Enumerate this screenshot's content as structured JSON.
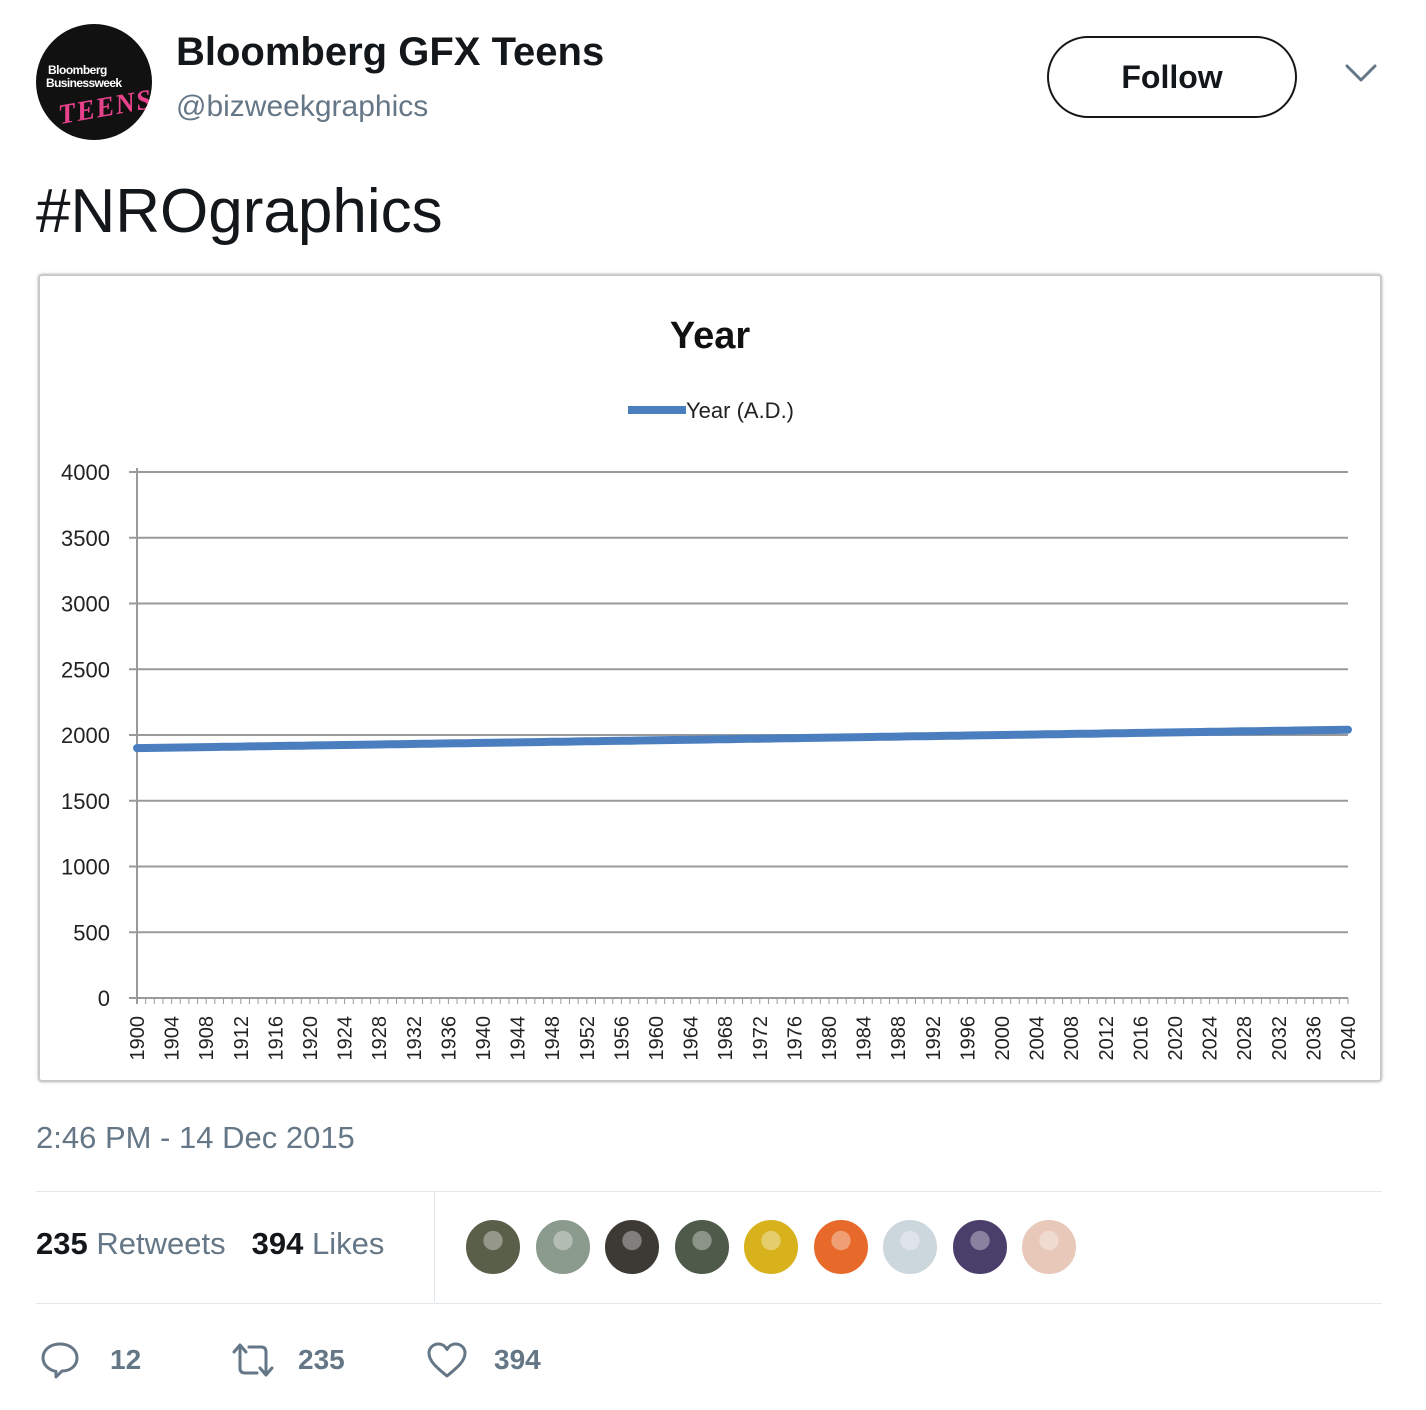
{
  "tweet": {
    "avatar_icon": "bloomberg-businessweek-teens-logo",
    "avatar_text": {
      "line1": "Bloomberg",
      "line2": "Businessweek",
      "line3": "TEENS"
    },
    "display_name": "Bloomberg GFX Teens",
    "handle": "@bizweekgraphics",
    "follow_label": "Follow",
    "menu_icon": "chevron-down-icon",
    "text": "#NROgraphics",
    "timestamp": "2:46 PM - 14 Dec 2015"
  },
  "stats": {
    "retweets_count": "235",
    "retweets_label": "Retweets",
    "likes_count": "394",
    "likes_label": "Likes",
    "likers": [
      {
        "name": "liker-avatar-1",
        "color": "#5a5f4a"
      },
      {
        "name": "liker-avatar-2",
        "color": "#8a9a8c"
      },
      {
        "name": "liker-avatar-3",
        "color": "#3d3a36"
      },
      {
        "name": "liker-avatar-4",
        "color": "#4e5a4a"
      },
      {
        "name": "liker-avatar-5",
        "color": "#d8b21c"
      },
      {
        "name": "liker-avatar-6",
        "color": "#e86a2a"
      },
      {
        "name": "liker-avatar-7",
        "color": "#ccd6dd"
      },
      {
        "name": "liker-avatar-8",
        "color": "#4a3e6a"
      },
      {
        "name": "liker-avatar-9",
        "color": "#e8c8b8"
      }
    ]
  },
  "actions": {
    "reply_icon": "reply-icon",
    "reply_count": "12",
    "retweet_icon": "retweet-icon",
    "retweet_count": "235",
    "like_icon": "heart-icon",
    "like_count": "394"
  },
  "chart_data": {
    "type": "line",
    "title": "Year",
    "legend_position": "top-center",
    "grid": true,
    "series": [
      {
        "name": "Year (A.D.)",
        "color": "#4a7ebf",
        "x_start": 1900,
        "x_end": 2040
      }
    ],
    "x_tick_labels": [
      "1900",
      "1904",
      "1908",
      "1912",
      "1916",
      "1920",
      "1924",
      "1928",
      "1932",
      "1936",
      "1940",
      "1944",
      "1948",
      "1952",
      "1956",
      "1960",
      "1964",
      "1968",
      "1972",
      "1976",
      "1980",
      "1984",
      "1988",
      "1992",
      "1996",
      "2000",
      "2004",
      "2008",
      "2012",
      "2016",
      "2020",
      "2024",
      "2028",
      "2032",
      "2036",
      "2040"
    ],
    "x_range": [
      1900,
      2040
    ],
    "y_ticks": [
      0,
      500,
      1000,
      1500,
      2000,
      2500,
      3000,
      3500,
      4000
    ],
    "y_tick_labels": [
      "0",
      "500",
      "1000",
      "1500",
      "2000",
      "2500",
      "3000",
      "3500",
      "4000"
    ],
    "ylim": [
      0,
      4000
    ]
  }
}
